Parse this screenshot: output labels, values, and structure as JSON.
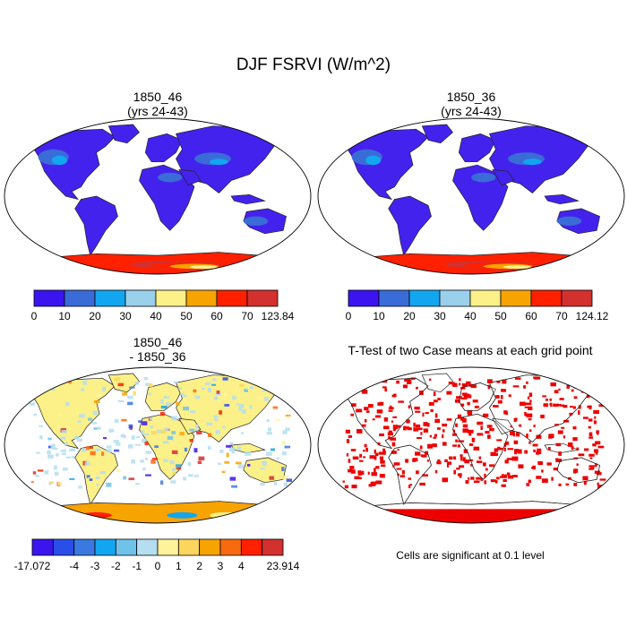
{
  "figure": {
    "title": "DJF FSRVI (W/m^2)"
  },
  "panels": [
    {
      "id": "case1",
      "title_line1": "1850_46",
      "title_line2": "(yrs 24-43)"
    },
    {
      "id": "case2",
      "title_line1": "1850_36",
      "title_line2": "(yrs 24-43)"
    },
    {
      "id": "diff",
      "title_line1": "1850_46",
      "title_line2": "- 1850_36"
    },
    {
      "id": "ttest",
      "title_line1": "T-Test of two Case means at each grid point",
      "note": "Cells are significant at 0.1 level"
    }
  ],
  "colorbars": [
    {
      "id": "case1-bar",
      "labels": [
        "0",
        "10",
        "20",
        "30",
        "40",
        "50",
        "60",
        "70",
        "123.84"
      ],
      "colors": [
        "#3b14f0",
        "#3a6cd8",
        "#12a6f0",
        "#9ad0ec",
        "#fcf088",
        "#f7a400",
        "#ff2000",
        "#d3302e"
      ]
    },
    {
      "id": "case2-bar",
      "labels": [
        "0",
        "10",
        "20",
        "30",
        "40",
        "50",
        "60",
        "70",
        "124.12"
      ],
      "colors": [
        "#3b14f0",
        "#3a6cd8",
        "#12a6f0",
        "#9ad0ec",
        "#fcf088",
        "#f7a400",
        "#ff2000",
        "#d3302e"
      ]
    },
    {
      "id": "diff-bar",
      "labels": [
        "-17.072",
        "-4",
        "-3",
        "-2",
        "-1",
        "0",
        "1",
        "2",
        "3",
        "4",
        "23.914"
      ],
      "label_slots": [
        0,
        2,
        3,
        4,
        5,
        6,
        7,
        8,
        9,
        10,
        12
      ],
      "colors": [
        "#3b14f0",
        "#2a4ee8",
        "#3a7ae0",
        "#12a6f0",
        "#6fc3ea",
        "#b5def0",
        "#fef39a",
        "#fcd55c",
        "#f7a400",
        "#f86a10",
        "#ff2000",
        "#d3302e"
      ]
    }
  ],
  "map_colors": {
    "case_land": "#4422ee",
    "case_land_light": "#3a6cd8",
    "case_land_cyan": "#12a6f0",
    "diff_land": "#fcf088",
    "diff_land_alt": "#b5def0",
    "ttest_sig": "#ee0000",
    "antarctica_case": [
      "#d3302e",
      "#ff2000",
      "#f7a400",
      "#fcf088"
    ],
    "antarctica_diff": [
      "#ff2000",
      "#f7a400",
      "#12a6f0",
      "#fcf088"
    ]
  }
}
